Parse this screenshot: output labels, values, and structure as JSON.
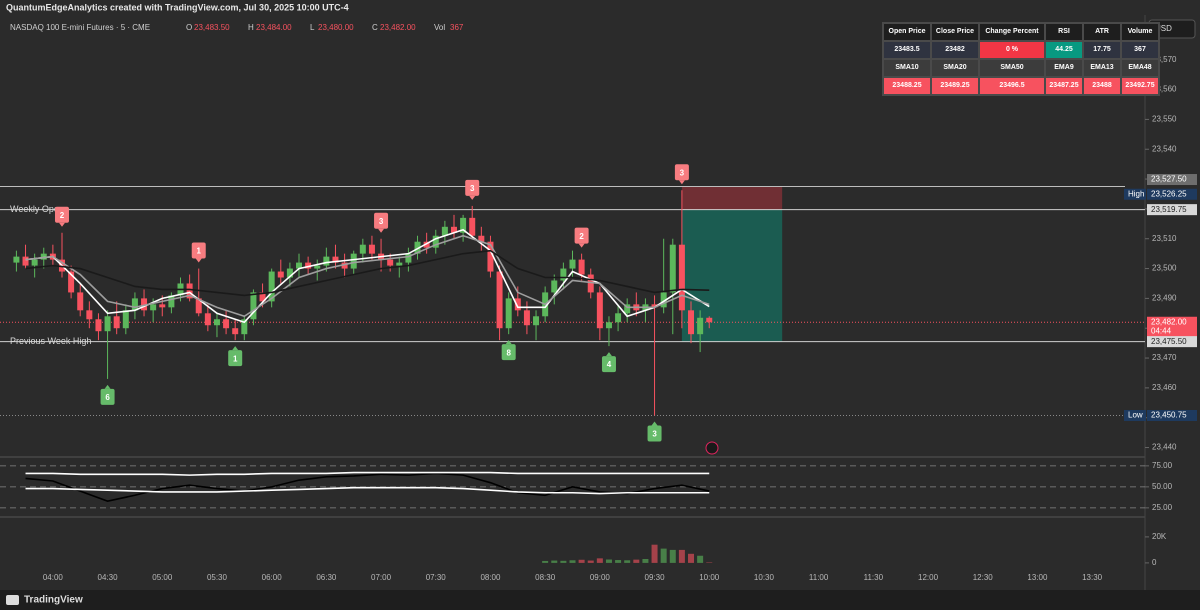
{
  "header": {
    "credit": "QuantumEdgeAnalytics created with TradingView.com, Jul 30, 2025 10:00 UTC-4",
    "instrument": "NASDAQ 100 E-mini Futures · 5 · CME",
    "ohlc": [
      {
        "key": "O",
        "value": "23,483.50"
      },
      {
        "key": "H",
        "value": "23,484.00"
      },
      {
        "key": "L",
        "value": "23,480.00"
      },
      {
        "key": "C",
        "value": "23,482.00"
      }
    ],
    "vol": {
      "key": "Vol",
      "value": "367"
    },
    "currency": "USD",
    "brand": "TradingView"
  },
  "info_table": {
    "rows": [
      [
        "Open Price",
        "Close Price",
        "Change Percent",
        "RSI",
        "ATR",
        "Volume"
      ],
      [
        23483.5,
        23482,
        "0 %",
        44.25,
        17.75,
        367
      ],
      [
        "SMA10",
        "SMA20",
        "SMA50",
        "EMA9",
        "EMA13",
        "EMA48"
      ],
      [
        23488.25,
        23489.25,
        23496.5,
        23487.25,
        23488,
        23492.75
      ]
    ]
  },
  "chart_data": [
    {
      "type": "candlestick",
      "up_color": "#5cb85c",
      "down_color": "#f7525f",
      "categories": [
        "03:40",
        "03:45",
        "03:50",
        "03:55",
        "04:00",
        "04:05",
        "04:10",
        "04:15",
        "04:20",
        "04:25",
        "04:30",
        "04:35",
        "04:40",
        "04:45",
        "04:50",
        "04:55",
        "05:00",
        "05:05",
        "05:10",
        "05:15",
        "05:20",
        "05:25",
        "05:30",
        "05:35",
        "05:40",
        "05:45",
        "05:50",
        "05:55",
        "06:00",
        "06:05",
        "06:10",
        "06:15",
        "06:20",
        "06:25",
        "06:30",
        "06:35",
        "06:40",
        "06:45",
        "06:50",
        "06:55",
        "07:00",
        "07:05",
        "07:10",
        "07:15",
        "07:20",
        "07:25",
        "07:30",
        "07:35",
        "07:40",
        "07:45",
        "07:50",
        "07:55",
        "08:00",
        "08:05",
        "08:10",
        "08:15",
        "08:20",
        "08:25",
        "08:30",
        "08:35",
        "08:40",
        "08:45",
        "08:50",
        "08:55",
        "09:00",
        "09:05",
        "09:10",
        "09:15",
        "09:20",
        "09:25",
        "09:30",
        "09:35",
        "09:40",
        "09:45",
        "09:50",
        "09:55",
        "10:00"
      ],
      "open": [
        23502,
        23504,
        23501,
        23503,
        23505,
        23503,
        23499,
        23492,
        23486,
        23483,
        23479,
        23484,
        23480,
        23486,
        23490,
        23486,
        23488,
        23487,
        23491,
        23495,
        23490,
        23485,
        23481,
        23483,
        23480,
        23478,
        23483,
        23492,
        23489,
        23499,
        23497,
        23500,
        23502,
        23500,
        23501,
        23504,
        23502,
        23500,
        23505,
        23508,
        23505,
        23503,
        23501,
        23502,
        23505,
        23509,
        23507,
        23511,
        23514,
        23512,
        23517,
        23511,
        23509,
        23499,
        23480,
        23490,
        23486,
        23481,
        23484,
        23492,
        23496,
        23500,
        23503,
        23498,
        23492,
        23480,
        23482,
        23485,
        23488,
        23486,
        23488,
        23487,
        23492,
        23508,
        23486,
        23478,
        23483.5
      ],
      "high": [
        23506,
        23508,
        23505,
        23507,
        23508,
        23512,
        23501,
        23495,
        23489,
        23485,
        23486,
        23489,
        23488,
        23492,
        23493,
        23490,
        23491,
        23492,
        23497,
        23498,
        23500,
        23488,
        23485,
        23486,
        23483,
        23484,
        23493,
        23495,
        23500,
        23503,
        23502,
        23505,
        23504,
        23503,
        23507,
        23508,
        23505,
        23506,
        23510,
        23511,
        23510,
        23505,
        23504,
        23507,
        23511,
        23512,
        23513,
        23516,
        23518,
        23518,
        23521,
        23514,
        23511,
        23501,
        23492,
        23494,
        23489,
        23486,
        23494,
        23498,
        23502,
        23506,
        23505,
        23500,
        23494,
        23484,
        23488,
        23490,
        23492,
        23490,
        23491,
        23510,
        23510,
        23526.25,
        23489,
        23486,
        23484
      ],
      "low": [
        23499,
        23500,
        23497,
        23500,
        23501,
        23497,
        23490,
        23484,
        23480,
        23476,
        23463,
        23478,
        23478,
        23483,
        23484,
        23482,
        23484,
        23485,
        23489,
        23489,
        23484,
        23479,
        23477,
        23478,
        23476,
        23476,
        23481,
        23487,
        23487,
        23495,
        23494,
        23497,
        23498,
        23496,
        23499,
        23500,
        23497,
        23498,
        23502,
        23503,
        23499,
        23499,
        23497,
        23499,
        23503,
        23505,
        23505,
        23508,
        23510,
        23509,
        23510,
        23506,
        23497,
        23476,
        23478,
        23484,
        23478,
        23476,
        23482,
        23488,
        23493,
        23497,
        23496,
        23490,
        23476,
        23474,
        23479,
        23482,
        23484,
        23482,
        23450.75,
        23485,
        23478,
        23480,
        23475,
        23472,
        23480
      ],
      "close": [
        23504,
        23501,
        23503,
        23505,
        23503,
        23499,
        23492,
        23486,
        23483,
        23479,
        23484,
        23480,
        23486,
        23490,
        23486,
        23488,
        23487,
        23491,
        23495,
        23490,
        23485,
        23481,
        23483,
        23480,
        23478,
        23483,
        23492,
        23489,
        23499,
        23497,
        23500,
        23502,
        23500,
        23501,
        23504,
        23502,
        23500,
        23505,
        23508,
        23505,
        23503,
        23501,
        23502,
        23505,
        23509,
        23507,
        23511,
        23514,
        23512,
        23517,
        23511,
        23509,
        23499,
        23480,
        23490,
        23486,
        23481,
        23484,
        23492,
        23496,
        23500,
        23503,
        23498,
        23492,
        23480,
        23482,
        23485,
        23488,
        23486,
        23488,
        23487,
        23492,
        23508,
        23486,
        23478,
        23483.5,
        23482
      ],
      "ylim": [
        23437.5,
        23585
      ],
      "yticks": [
        {
          "value": 23440,
          "label": "23,440"
        },
        {
          "value": 23450,
          "label": "23,450"
        },
        {
          "value": 23460,
          "label": "23,460"
        },
        {
          "value": 23470,
          "label": "23,470"
        },
        {
          "value": 23480,
          "label": "23,480"
        },
        {
          "value": 23490,
          "label": "23,490"
        },
        {
          "value": 23500,
          "label": "23,500"
        },
        {
          "value": 23510,
          "label": "23,510"
        },
        {
          "value": 23520,
          "label": "23,520"
        },
        {
          "value": 23530,
          "label": "23,530"
        },
        {
          "value": 23540,
          "label": "23,540"
        },
        {
          "value": 23550,
          "label": "23,550"
        },
        {
          "value": 23560,
          "label": "23,560"
        },
        {
          "value": 23570,
          "label": "23,570"
        }
      ],
      "xlim": [
        "03:31",
        "13:59"
      ],
      "xticks": [
        "04:00",
        "04:30",
        "05:00",
        "05:30",
        "06:00",
        "06:30",
        "07:00",
        "07:30",
        "08:00",
        "08:30",
        "09:00",
        "09:30",
        "10:00",
        "10:30",
        "11:00",
        "11:30",
        "12:00",
        "12:30",
        "13:00",
        "13:30"
      ],
      "price_labels": [
        {
          "value": 23527.5,
          "label": "23,527.50",
          "style": "line"
        },
        {
          "value": 23526.25,
          "label": "23,526.25",
          "tag": "High"
        },
        {
          "value": 23519.75,
          "label": "23,519.75",
          "text": "Weekly Open",
          "style": "level"
        },
        {
          "value": 23482,
          "label": "23,482.00",
          "sub": "04:44",
          "style": "current"
        },
        {
          "value": 23475.5,
          "label": "23,475.50",
          "text": "Previous Week High",
          "style": "level"
        },
        {
          "value": 23450.75,
          "label": "23,450.75",
          "tag": "Low",
          "style": "dotted"
        }
      ],
      "signals": [
        {
          "text": 2,
          "x": "04:05",
          "side": "sell"
        },
        {
          "text": 6,
          "x": "04:30",
          "side": "buy"
        },
        {
          "text": 1,
          "x": "05:20",
          "side": "sell"
        },
        {
          "text": 1,
          "x": "05:40",
          "side": "buy"
        },
        {
          "text": 3,
          "x": "07:00",
          "side": "sell"
        },
        {
          "text": 3,
          "x": "07:50",
          "side": "sell"
        },
        {
          "text": 8,
          "x": "08:10",
          "side": "buy"
        },
        {
          "text": 2,
          "x": "08:50",
          "side": "sell"
        },
        {
          "text": 4,
          "x": "09:05",
          "side": "buy"
        },
        {
          "text": 3,
          "x": "09:30",
          "side": "buy"
        },
        {
          "text": 3,
          "x": "09:45",
          "side": "sell"
        }
      ],
      "position": {
        "start": "09:45",
        "end": "10:40",
        "entry": 23519.75,
        "stop": 23527.5,
        "target": 23475.5
      }
    },
    {
      "type": "line",
      "x": [
        "03:45",
        "04:00",
        "04:15",
        "04:30",
        "04:45",
        "05:00",
        "05:15",
        "05:30",
        "05:45",
        "06:00",
        "06:15",
        "06:30",
        "06:45",
        "07:00",
        "07:15",
        "07:30",
        "07:45",
        "08:00",
        "08:15",
        "08:30",
        "08:45",
        "09:00",
        "09:15",
        "09:30",
        "09:45",
        "10:00"
      ],
      "series": [
        {
          "color": "#ffffff",
          "values": [
            23503,
            23504,
            23495,
            23485,
            23486,
            23490,
            23492,
            23485,
            23482,
            23492,
            23500,
            23502,
            23503,
            23504,
            23505,
            23510,
            23513,
            23506,
            23487,
            23487,
            23499,
            23495,
            23484,
            23487,
            23493,
            23487.25
          ]
        },
        {
          "color": "#9e9e9e",
          "values": [
            23503,
            23504,
            23498,
            23489,
            23487,
            23489,
            23491,
            23487,
            23484,
            23490,
            23497,
            23500,
            23502,
            23503,
            23504,
            23508,
            23511,
            23508,
            23492,
            23488,
            23496,
            23495,
            23487,
            23487,
            23491,
            23488
          ]
        },
        {
          "color": "#1a1a1a",
          "values": [
            23500,
            23501,
            23500,
            23497,
            23494,
            23493,
            23493,
            23492,
            23491,
            23492,
            23494,
            23496,
            23498,
            23500,
            23501,
            23503,
            23505,
            23506,
            23500,
            23497,
            23497,
            23496,
            23494,
            23492,
            23493,
            23492.75
          ]
        }
      ],
      "ylim": [
        23437.5,
        23585
      ]
    },
    {
      "type": "line",
      "x": [
        "03:45",
        "04:00",
        "04:15",
        "04:30",
        "04:45",
        "05:00",
        "05:15",
        "05:30",
        "05:45",
        "06:00",
        "06:15",
        "06:30",
        "06:45",
        "07:00",
        "07:15",
        "07:30",
        "07:45",
        "08:00",
        "08:15",
        "08:30",
        "08:45",
        "09:00",
        "09:15",
        "09:30",
        "09:45",
        "10:00"
      ],
      "series": [
        {
          "color": "#000000",
          "values": [
            60,
            57,
            45,
            33,
            40,
            48,
            52,
            48,
            45,
            50,
            58,
            62,
            63,
            65,
            64,
            66,
            64,
            55,
            43,
            40,
            50,
            44,
            42,
            48,
            52,
            45
          ]
        },
        {
          "color": "#ffffff",
          "values": [
            66,
            66,
            65,
            65,
            65,
            65,
            64,
            65,
            65,
            66,
            66,
            66,
            67,
            67,
            67,
            67,
            67,
            67,
            66,
            66,
            66,
            66,
            66,
            66,
            66,
            66
          ]
        },
        {
          "color": "#ffffff",
          "values": [
            48,
            48,
            47,
            46,
            45,
            44,
            44,
            44,
            45,
            46,
            47,
            48,
            49,
            49,
            49,
            49,
            48,
            46,
            44,
            43,
            43,
            42,
            43,
            43,
            43,
            43
          ]
        }
      ],
      "ylim": [
        16.5,
        82
      ],
      "yticks": [
        {
          "value": 25,
          "label": "25.00"
        },
        {
          "value": 50,
          "label": "50.00"
        },
        {
          "value": 75,
          "label": "75.00"
        }
      ],
      "grid": true
    },
    {
      "type": "bar",
      "categories": [
        "08:30",
        "08:35",
        "08:40",
        "08:45",
        "08:50",
        "08:55",
        "09:00",
        "09:05",
        "09:10",
        "09:15",
        "09:20",
        "09:25",
        "09:30",
        "09:35",
        "09:40",
        "09:45",
        "09:50",
        "09:55",
        "10:00"
      ],
      "values": [
        1500,
        1800,
        1600,
        2000,
        2400,
        1800,
        3500,
        2600,
        2200,
        2000,
        2500,
        3000,
        14000,
        11000,
        10000,
        10000,
        7000,
        5500,
        367
      ],
      "ylim": [
        -7000,
        33000
      ],
      "yticks": [
        0,
        {
          "value": 20000,
          "label": "20K"
        }
      ]
    }
  ]
}
